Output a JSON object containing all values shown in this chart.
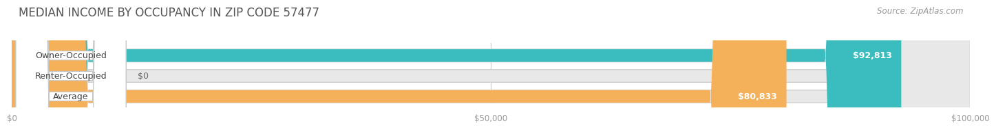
{
  "title": "MEDIAN INCOME BY OCCUPANCY IN ZIP CODE 57477",
  "source": "Source: ZipAtlas.com",
  "categories": [
    "Owner-Occupied",
    "Renter-Occupied",
    "Average"
  ],
  "values": [
    92813,
    0,
    80833
  ],
  "bar_colors": [
    "#3bbcbe",
    "#c4a8d4",
    "#f5b05a"
  ],
  "value_labels": [
    "$92,813",
    "$0",
    "$80,833"
  ],
  "xlim": [
    0,
    100000
  ],
  "xticks": [
    0,
    50000,
    100000
  ],
  "xtick_labels": [
    "$0",
    "$50,000",
    "$100,000"
  ],
  "background_color": "#ffffff",
  "bar_background_color": "#e8e8e8",
  "bar_outer_color": "#d8d8d8",
  "title_fontsize": 12,
  "source_fontsize": 8.5,
  "bar_label_fontsize": 9,
  "value_label_fontsize": 9
}
